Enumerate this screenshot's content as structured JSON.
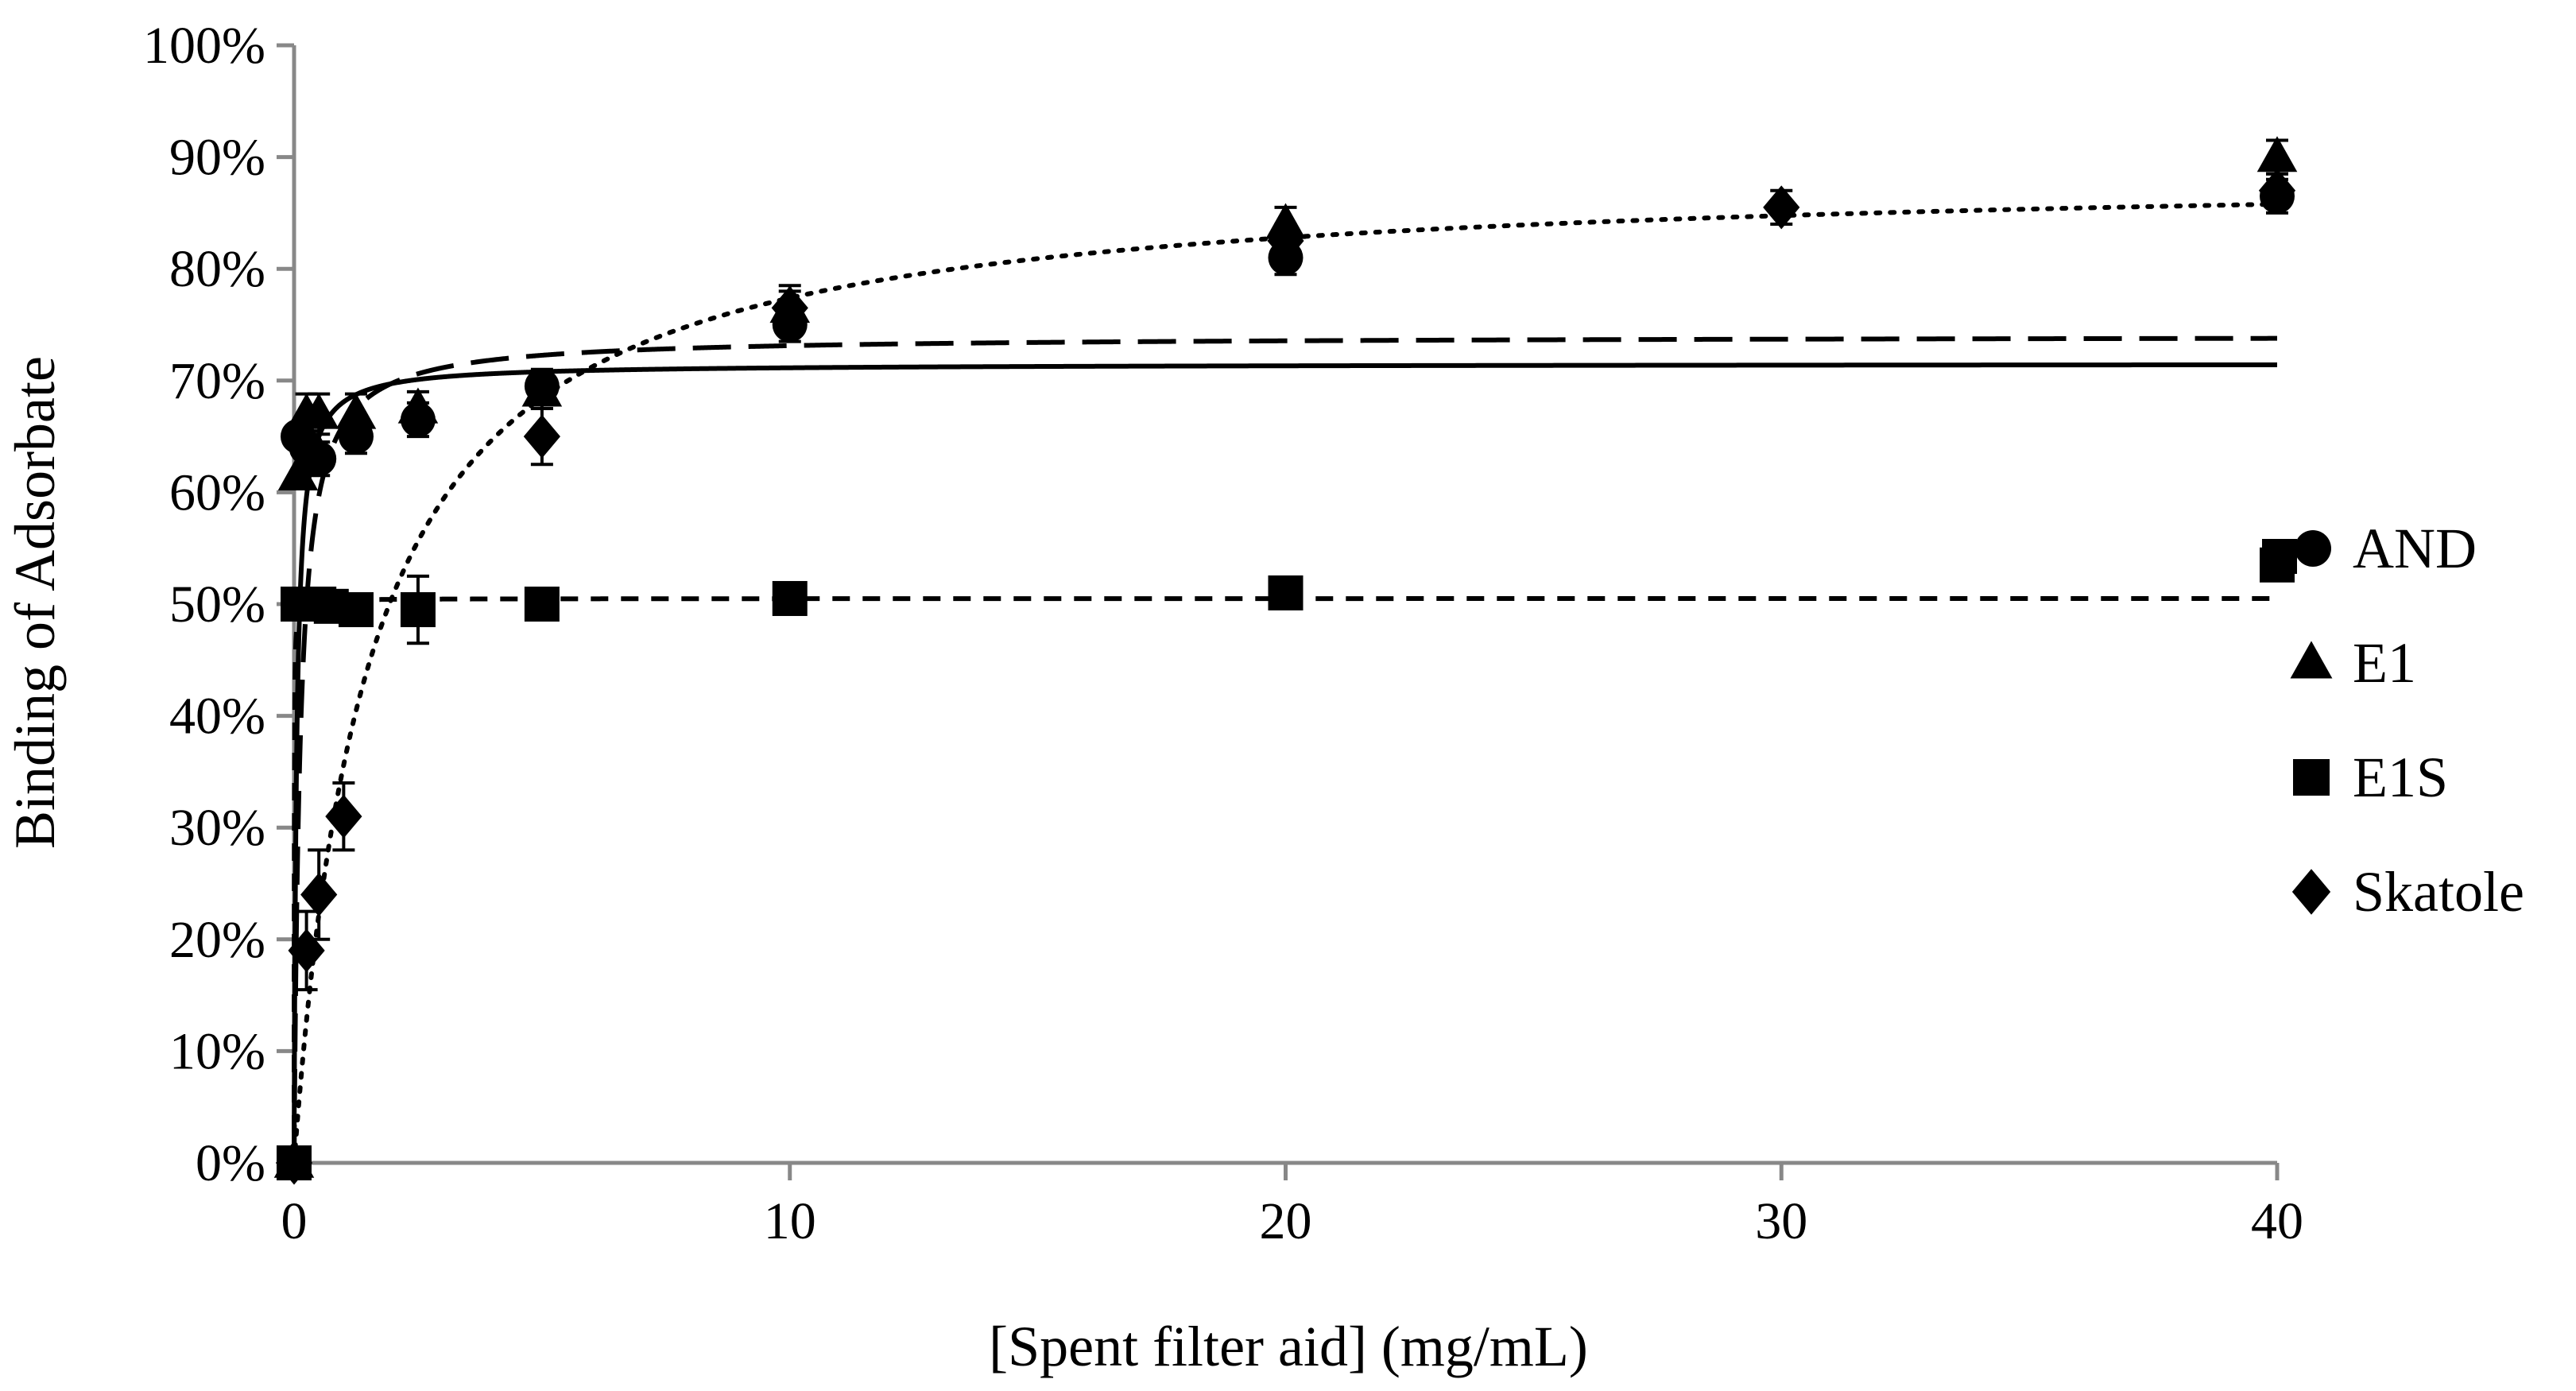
{
  "chart_data": {
    "type": "scatter",
    "xlabel": "[Spent filter aid] (mg/mL)",
    "ylabel": "Binding of Adsorbate",
    "xlim": [
      0,
      40
    ],
    "ylim": [
      0,
      100
    ],
    "x_ticks": [
      0,
      10,
      20,
      30,
      40
    ],
    "y_ticks": [
      0,
      10,
      20,
      30,
      40,
      50,
      60,
      70,
      80,
      90,
      100
    ],
    "y_tick_labels": [
      "0%",
      "10%",
      "20%",
      "30%",
      "40%",
      "50%",
      "60%",
      "70%",
      "80%",
      "90%",
      "100%"
    ],
    "x_tick_labels": [
      "0",
      "10",
      "20",
      "30",
      "40"
    ],
    "grid": false,
    "legend_position": "right",
    "series": [
      {
        "name": "AND",
        "marker": "circle",
        "fit_style": "solid",
        "fit": {
          "model": "langmuir",
          "max": 71.5,
          "k": 0.05
        },
        "points": [
          {
            "x": 0,
            "y": 0,
            "err": 0
          },
          {
            "x": 0.08,
            "y": 65,
            "err": 0
          },
          {
            "x": 0.25,
            "y": 64,
            "err": 1.5
          },
          {
            "x": 0.5,
            "y": 63,
            "err": 1.5
          },
          {
            "x": 1.25,
            "y": 65,
            "err": 1.5
          },
          {
            "x": 2.5,
            "y": 66.5,
            "err": 1.5
          },
          {
            "x": 5,
            "y": 69.5,
            "err": 1.5
          },
          {
            "x": 10,
            "y": 75,
            "err": 1.5
          },
          {
            "x": 20,
            "y": 81,
            "err": 1.5
          },
          {
            "x": 40,
            "y": 86.5,
            "err": 1.5
          }
        ]
      },
      {
        "name": "E1",
        "marker": "triangle",
        "fit_style": "long-dash",
        "fit": {
          "model": "langmuir",
          "max": 74,
          "k": 0.12
        },
        "points": [
          {
            "x": 0,
            "y": 0,
            "err": 0
          },
          {
            "x": 0.08,
            "y": 61.5,
            "err": 0
          },
          {
            "x": 0.25,
            "y": 67,
            "err": 1.8
          },
          {
            "x": 0.5,
            "y": 67,
            "err": 1.8
          },
          {
            "x": 1.25,
            "y": 67,
            "err": 1.8
          },
          {
            "x": 2.5,
            "y": 67.5,
            "err": 1.5
          },
          {
            "x": 5,
            "y": 69,
            "err": 1.5
          },
          {
            "x": 10,
            "y": 76.5,
            "err": 1.5
          },
          {
            "x": 20,
            "y": 84,
            "err": 1.5
          },
          {
            "x": 40,
            "y": 90,
            "err": 1.5
          }
        ]
      },
      {
        "name": "E1S",
        "marker": "square",
        "fit_style": "short-dash",
        "fit": {
          "model": "langmuir",
          "max": 50.5,
          "k": 0.003
        },
        "points": [
          {
            "x": 0,
            "y": 0,
            "err": 0
          },
          {
            "x": 0.08,
            "y": 50,
            "err": 0
          },
          {
            "x": 0.25,
            "y": 50,
            "err": 0
          },
          {
            "x": 0.5,
            "y": 50,
            "err": 0
          },
          {
            "x": 0.75,
            "y": 49.8,
            "err": 0
          },
          {
            "x": 1.25,
            "y": 49.5,
            "err": 0
          },
          {
            "x": 2.5,
            "y": 49.5,
            "err": 3
          },
          {
            "x": 5,
            "y": 50,
            "err": 0
          },
          {
            "x": 10,
            "y": 50.5,
            "err": 0
          },
          {
            "x": 20,
            "y": 51,
            "err": 0
          },
          {
            "x": 40,
            "y": 53.5,
            "err": 0
          }
        ]
      },
      {
        "name": "Skatole",
        "marker": "diamond",
        "fit_style": "dotted",
        "fit": {
          "model": "langmuir",
          "max": 89,
          "k": 1.5
        },
        "points": [
          {
            "x": 0,
            "y": 0,
            "err": 0
          },
          {
            "x": 0.25,
            "y": 19,
            "err": 3.5
          },
          {
            "x": 0.5,
            "y": 24,
            "err": 4
          },
          {
            "x": 1,
            "y": 31,
            "err": 3
          },
          {
            "x": 5,
            "y": 65,
            "err": 2.5
          },
          {
            "x": 10,
            "y": 76.5,
            "err": 2
          },
          {
            "x": 20,
            "y": 82.5,
            "err": 1.5
          },
          {
            "x": 30,
            "y": 85.5,
            "err": 1.5
          },
          {
            "x": 40,
            "y": 87,
            "err": 1.5
          }
        ]
      }
    ]
  }
}
